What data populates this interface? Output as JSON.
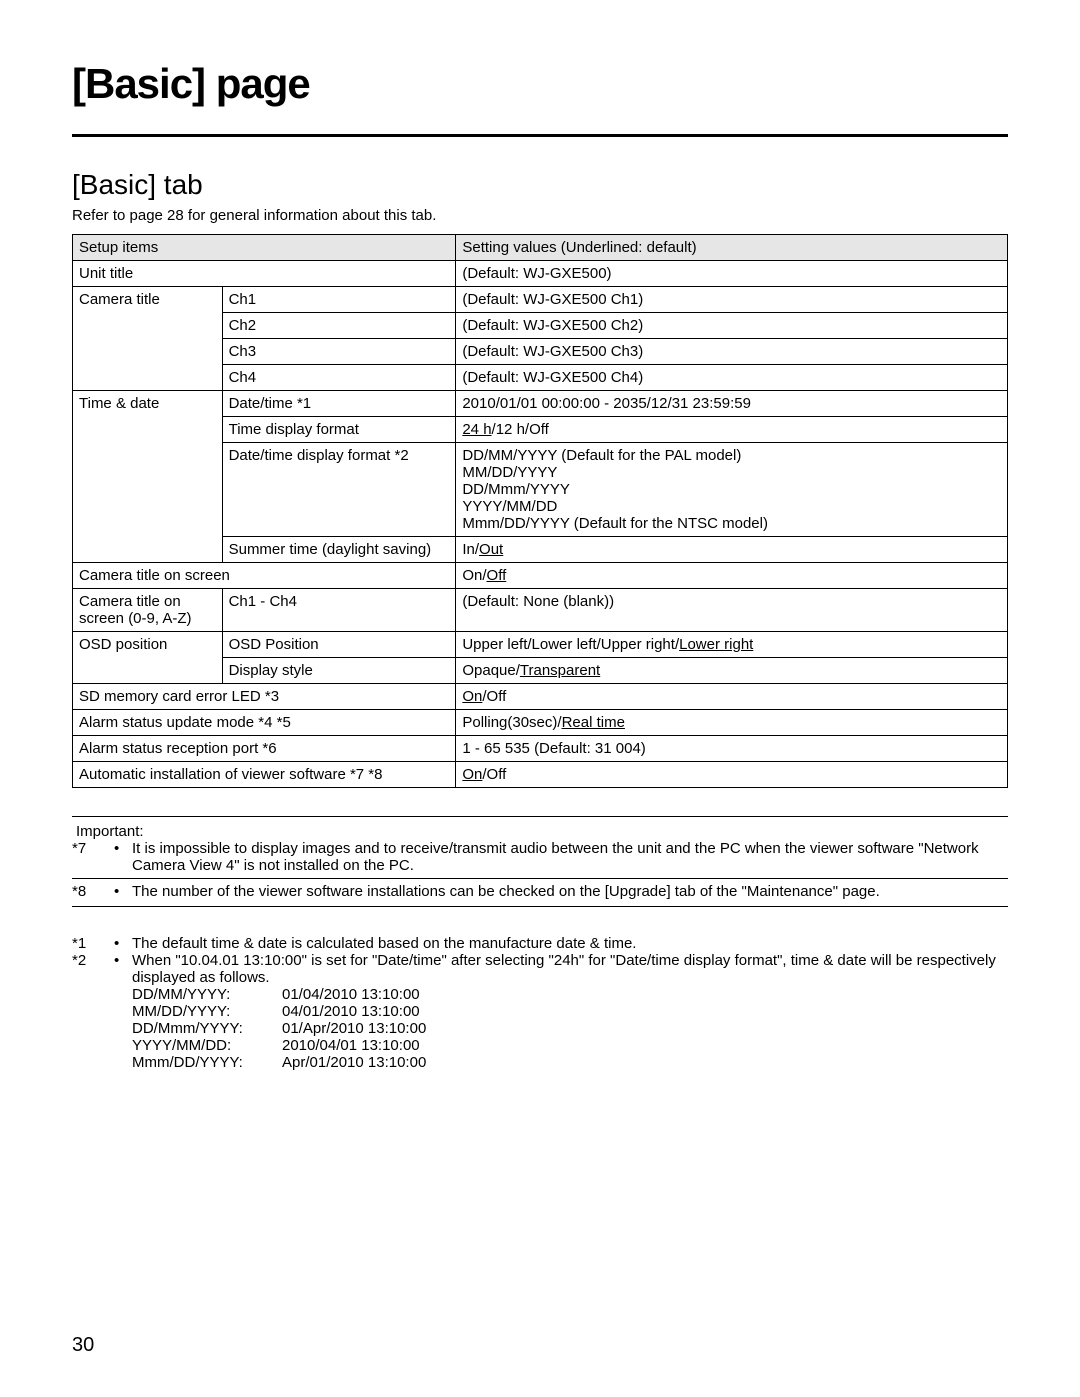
{
  "page_title": "[Basic] page",
  "tab_title": "[Basic] tab",
  "refer_text": "Refer to page 28 for general information about this tab.",
  "headers": {
    "setup_items": "Setup items",
    "setting_values": "Setting values (Underlined: default)"
  },
  "rows": {
    "unit_title": {
      "label": "Unit title",
      "value": "(Default: WJ-GXE500)"
    },
    "camera_title": {
      "label": "Camera title",
      "ch1": {
        "sub": "Ch1",
        "value": "(Default: WJ-GXE500 Ch1)"
      },
      "ch2": {
        "sub": "Ch2",
        "value": "(Default: WJ-GXE500 Ch2)"
      },
      "ch3": {
        "sub": "Ch3",
        "value": "(Default: WJ-GXE500 Ch3)"
      },
      "ch4": {
        "sub": "Ch4",
        "value": "(Default: WJ-GXE500 Ch4)"
      }
    },
    "time_date": {
      "label": "Time & date",
      "datetime": {
        "sub": "Date/time *1",
        "value": "2010/01/01 00:00:00 - 2035/12/31 23:59:59"
      },
      "time_disp": {
        "sub": "Time display format",
        "default": "24 h",
        "rest": "/12 h/Off"
      },
      "date_disp": {
        "sub": "Date/time display format *2",
        "l1": "DD/MM/YYYY (Default for the PAL model)",
        "l2": "MM/DD/YYYY",
        "l3": "DD/Mmm/YYYY",
        "l4": "YYYY/MM/DD",
        "l5": "Mmm/DD/YYYY (Default for the NTSC model)"
      },
      "summer": {
        "sub": "Summer time (daylight saving)",
        "pre": "In/",
        "default": "Out"
      }
    },
    "cam_title_on_screen": {
      "label": "Camera title on screen",
      "pre": "On/",
      "default": "Off"
    },
    "cam_title_chars": {
      "label_l1": "Camera title on",
      "label_l2": "screen (0-9, A-Z)",
      "sub": "Ch1 - Ch4",
      "value": "(Default: None (blank))"
    },
    "osd": {
      "label": "OSD position",
      "pos": {
        "sub": "OSD Position",
        "pre": "Upper left/Lower left/Upper right/",
        "default": "Lower right"
      },
      "style": {
        "sub": "Display style",
        "pre": "Opaque/",
        "default": "Transparent"
      }
    },
    "sd_led": {
      "label": "SD memory card error LED *3",
      "default": "On",
      "rest": "/Off"
    },
    "alarm_mode": {
      "label": "Alarm status update mode *4 *5",
      "pre": "Polling(30sec)/",
      "default": "Real time"
    },
    "alarm_port": {
      "label": "Alarm status reception port *6",
      "value": "1 - 65 535 (Default: 31 004)"
    },
    "auto_install": {
      "label": "Automatic installation of viewer software *7 *8",
      "default": "On",
      "rest": "/Off"
    }
  },
  "important": {
    "label": "Important:",
    "n7": {
      "marker": "*7",
      "text": "It is impossible to display images and to receive/transmit audio between the unit and the PC when the viewer software \"Network Camera View 4\" is not installed on the PC."
    },
    "n8": {
      "marker": "*8",
      "text": "The number of the viewer software installations can be checked on the [Upgrade] tab of the \"Maintenance\" page."
    }
  },
  "notes": {
    "n1": {
      "marker": "*1",
      "text": "The default time & date is calculated based on the manufacture date & time."
    },
    "n2": {
      "marker": "*2",
      "text": "When \"10.04.01 13:10:00\" is set for \"Date/time\" after selecting \"24h\" for \"Date/time display format\", time & date will be respectively displayed as follows.",
      "formats": {
        "f1": {
          "k": "DD/MM/YYYY:",
          "v": "01/04/2010 13:10:00"
        },
        "f2": {
          "k": "MM/DD/YYYY:",
          "v": "04/01/2010 13:10:00"
        },
        "f3": {
          "k": "DD/Mmm/YYYY:",
          "v": "01/Apr/2010 13:10:00"
        },
        "f4": {
          "k": "YYYY/MM/DD:",
          "v": "2010/04/01 13:10:00"
        },
        "f5": {
          "k": "Mmm/DD/YYYY:",
          "v": "Apr/01/2010 13:10:00"
        }
      }
    }
  },
  "page_number": "30"
}
